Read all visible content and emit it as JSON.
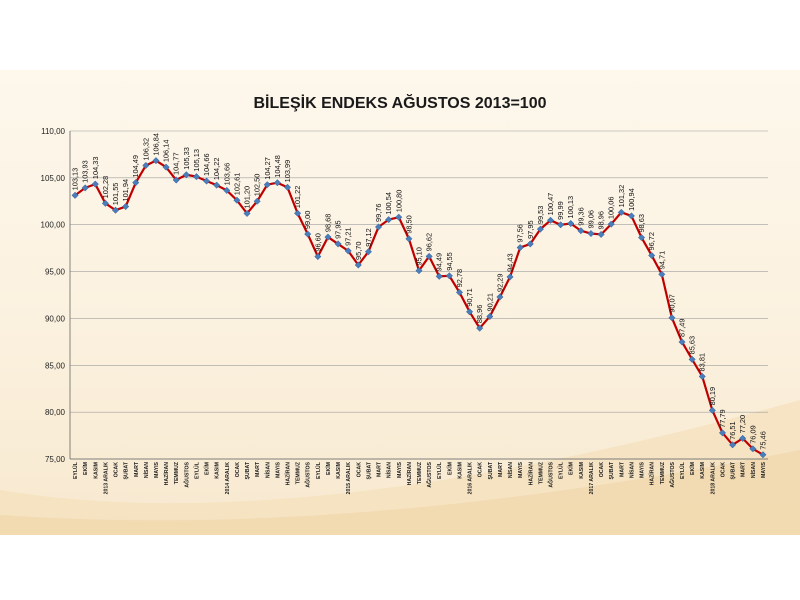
{
  "title": "BİLEŞİK ENDEKS AĞUSTOS 2013=100",
  "colors": {
    "line": "#c00000",
    "marker": "#4a7ebb",
    "grid": "#a0a0a0",
    "background": "#fbf1df"
  },
  "chart_data": {
    "type": "line",
    "title": "BİLEŞİK ENDEKS AĞUSTOS 2013=100",
    "xlabel": "",
    "ylabel": "",
    "ylim": [
      75,
      110
    ],
    "yticks": [
      "75,00",
      "80,00",
      "85,00",
      "90,00",
      "95,00",
      "100,00",
      "105,00",
      "110,00"
    ],
    "grid": true,
    "legend": "none",
    "x": [
      "EYLÜL",
      "EKİM",
      "KASIM",
      "2013 ARALIK",
      "OCAK",
      "ŞUBAT",
      "MART",
      "NİSAN",
      "MAYIS",
      "HAZİRAN",
      "TEMMUZ",
      "AĞUSTOS",
      "EYLÜL",
      "EKİM",
      "KASIM",
      "2014 ARALIK",
      "OCAK",
      "ŞUBAT",
      "MART",
      "NİSAN",
      "MAYIS",
      "HAZİRAN",
      "TEMMUZ",
      "AĞUSTOS",
      "EYLÜL",
      "EKİM",
      "KASIM",
      "2015 ARALIK",
      "OCAK",
      "ŞUBAT",
      "MART",
      "NİSAN",
      "MAYIS",
      "HAZİRAN",
      "TEMMUZ",
      "AĞUSTOS",
      "EYLÜL",
      "EKİM",
      "KASIM",
      "2016 ARALIK",
      "OCAK",
      "ŞUBAT",
      "MART",
      "NİSAN",
      "MAYIS",
      "HAZİRAN",
      "TEMMUZ",
      "AĞUSTOS",
      "EYLÜL",
      "EKİM",
      "KASIM",
      "2017 ARALIK",
      "OCAK",
      "ŞUBAT",
      "MART",
      "NİSAN",
      "MAYIS",
      "HAZİRAN",
      "TEMMUZ",
      "AĞUSTOS",
      "EYLÜL",
      "EKİM",
      "KASIM",
      "2018 ARALIK",
      "OCAK",
      "ŞUBAT",
      "MART",
      "NİSAN",
      "MAYIS"
    ],
    "y": [
      103.13,
      103.93,
      104.33,
      102.28,
      101.55,
      101.94,
      104.49,
      106.32,
      106.84,
      106.14,
      104.77,
      105.33,
      105.13,
      104.66,
      104.22,
      103.66,
      102.61,
      101.2,
      102.5,
      104.27,
      104.48,
      103.99,
      101.22,
      99.0,
      96.6,
      98.68,
      97.95,
      97.21,
      95.7,
      97.12,
      99.76,
      100.54,
      100.8,
      98.5,
      95.1,
      96.62,
      94.49,
      94.55,
      92.78,
      90.71,
      88.96,
      90.21,
      92.29,
      94.43,
      97.56,
      97.95,
      99.53,
      100.47,
      99.99,
      100.13,
      99.36,
      99.06,
      98.96,
      100.06,
      101.32,
      100.94,
      98.63,
      96.72,
      94.71,
      90.07,
      87.49,
      85.63,
      83.81,
      80.19,
      77.79,
      76.51,
      77.2,
      76.09,
      75.46
    ],
    "labels": [
      "103,13",
      "103,93",
      "104,33",
      "102,28",
      "101,55",
      "101,94",
      "104,49",
      "106,32",
      "106,84",
      "106,14",
      "104,77",
      "105,33",
      "105,13",
      "104,66",
      "104,22",
      "103,66",
      "102,61",
      "101,20",
      "102,50",
      "104,27",
      "104,48",
      "103,99",
      "101,22",
      "99,00",
      "96,60",
      "98,68",
      "97,95",
      "97,21",
      "95,70",
      "97,12",
      "99,76",
      "100,54",
      "100,80",
      "98,50",
      "95,10",
      "96,62",
      "94,49",
      "94,55",
      "92,78",
      "90,71",
      "88,96",
      "90,21",
      "92,29",
      "94,43",
      "97,56",
      "97,95",
      "99,53",
      "100,47",
      "99,99",
      "100,13",
      "99,36",
      "99,06",
      "98,96",
      "100,06",
      "101,32",
      "100,94",
      "98,63",
      "96,72",
      "94,71",
      "90,07",
      "87,49",
      "85,63",
      "83,81",
      "80,19",
      "77,79",
      "76,51",
      "77,20",
      "76,09",
      "75,46"
    ]
  }
}
